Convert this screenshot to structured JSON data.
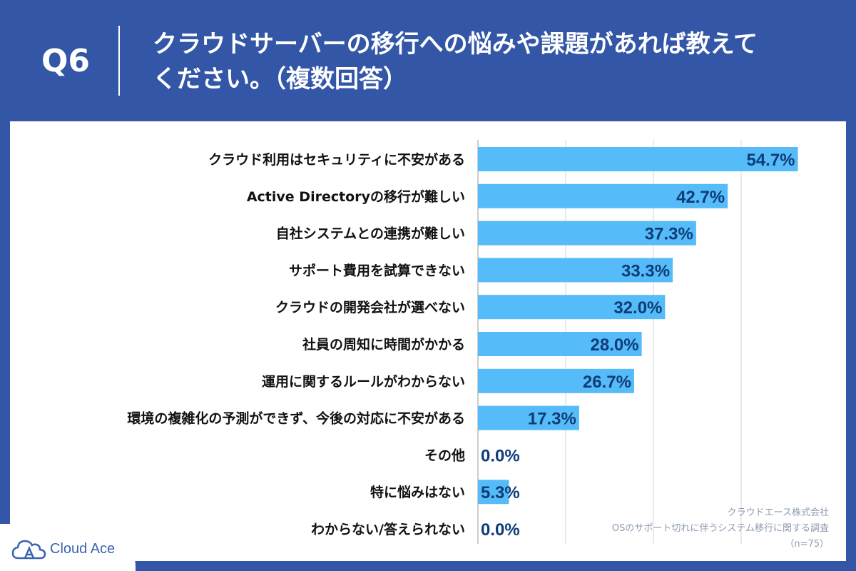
{
  "header": {
    "question_number": "Q6",
    "title": "クラウドサーバーの移行への悩みや課題があれば教えて\nください。（複数回答）"
  },
  "chart_data": {
    "type": "bar",
    "orientation": "horizontal",
    "title": "クラウドサーバーの移行への悩みや課題があれば教えてください。（複数回答）",
    "categories": [
      "クラウド利用はセキュリティに不安がある",
      "Active Directoryの移行が難しい",
      "自社システムとの連携が難しい",
      "サポート費用を試算できない",
      "クラウドの開発会社が選べない",
      "社員の周知に時間がかかる",
      "運用に関するルールがわからない",
      "環境の複雑化の予測ができず、今後の対応に不安がある",
      "その他",
      "特に悩みはない",
      "わからない/答えられない"
    ],
    "values": [
      54.7,
      42.7,
      37.3,
      33.3,
      32.0,
      28.0,
      26.7,
      17.3,
      0.0,
      5.3,
      0.0
    ],
    "labels": [
      "54.7%",
      "42.7%",
      "37.3%",
      "33.3%",
      "32.0%",
      "28.0%",
      "26.7%",
      "17.3%",
      "0.0%",
      "5.3%",
      "0.0%"
    ],
    "xlim": [
      0,
      60
    ],
    "grid": true,
    "xlabel": "",
    "ylabel": ""
  },
  "colors": {
    "bar": "#56bbf9",
    "label": "#0d3d78",
    "category_text": "#111111",
    "grid": "#d5d5d5"
  },
  "footer": {
    "company": "クラウドエース株式会社",
    "survey": "OSのサポート切れに伴うシステム移行に関する調査",
    "sample": "（n=75）"
  },
  "logo": {
    "name": "Cloud Ace",
    "icon": "cloud-ace-icon"
  }
}
